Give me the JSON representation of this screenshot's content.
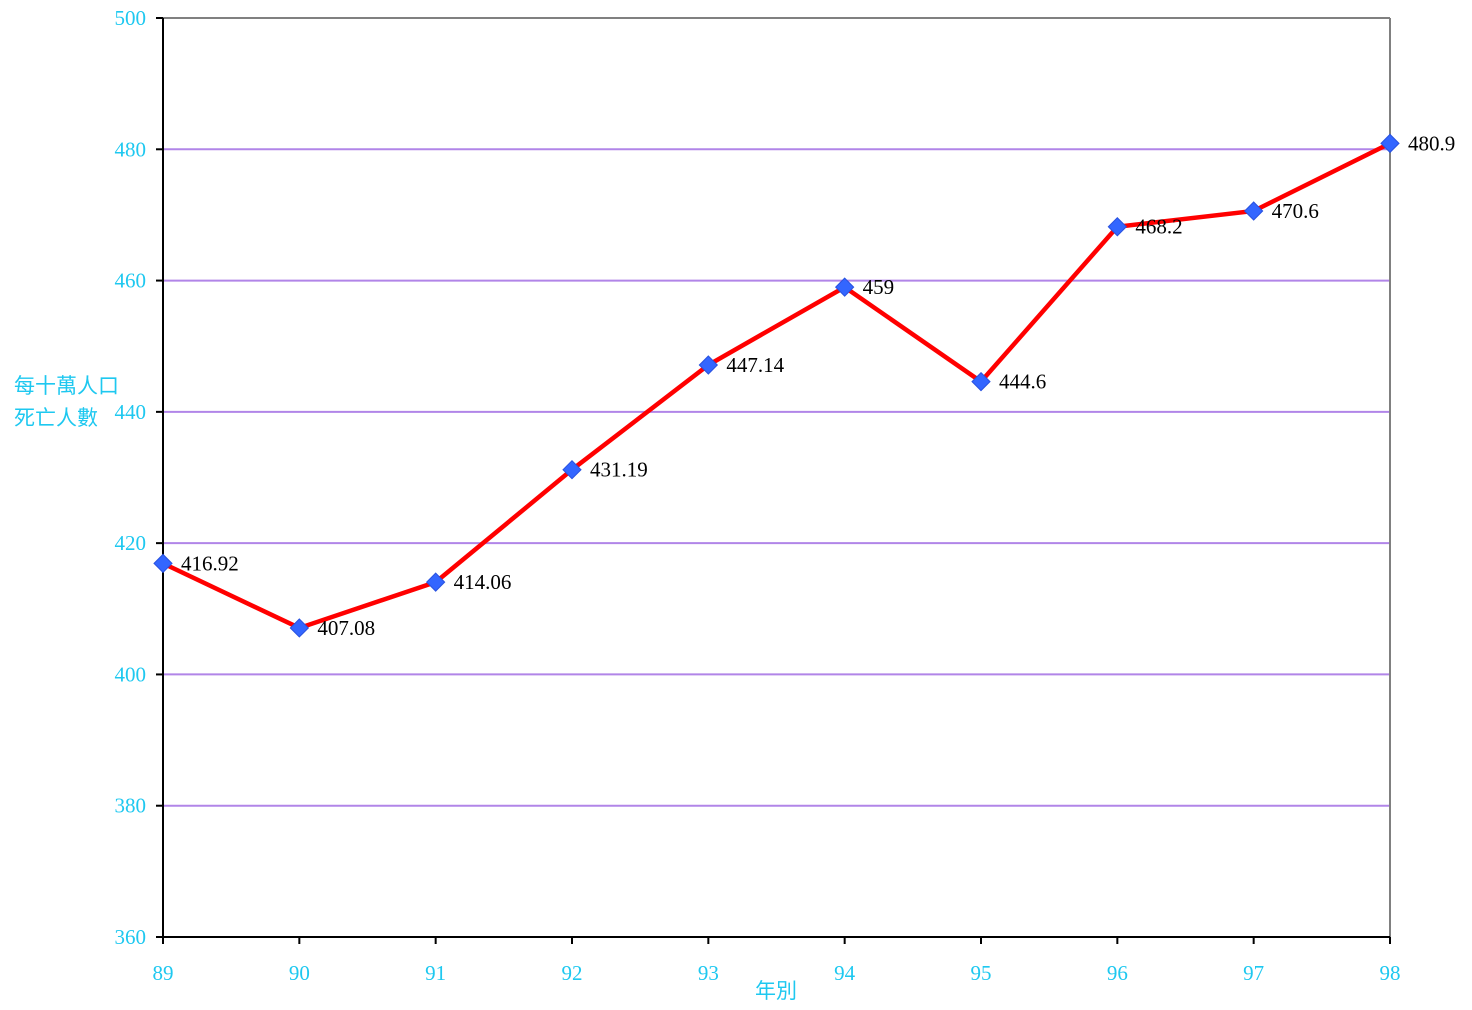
{
  "chart_data": {
    "type": "line",
    "title": "",
    "xlabel": "年別",
    "ylabel": [
      "每十萬人口",
      "死亡人數"
    ],
    "categories": [
      "89",
      "90",
      "91",
      "92",
      "93",
      "94",
      "95",
      "96",
      "97",
      "98"
    ],
    "series": [
      {
        "values": [
          416.92,
          407.08,
          414.06,
          431.19,
          447.14,
          459,
          444.6,
          468.2,
          470.6,
          480.9
        ],
        "data_labels": [
          "416.92",
          "407.08",
          "414.06",
          "431.19",
          "447.14",
          "459",
          "444.6",
          "468.2",
          "470.6",
          "480.9"
        ],
        "line_color": "#ff0000",
        "marker": "diamond",
        "marker_color": "#3366ff"
      }
    ],
    "ylim": [
      360,
      500
    ],
    "yticks": [
      360,
      380,
      400,
      420,
      440,
      460,
      480,
      500
    ],
    "grid": "horizontal",
    "grid_color": "#b185e8",
    "axis_label_color": "#1ec8f0",
    "legend": "none"
  }
}
